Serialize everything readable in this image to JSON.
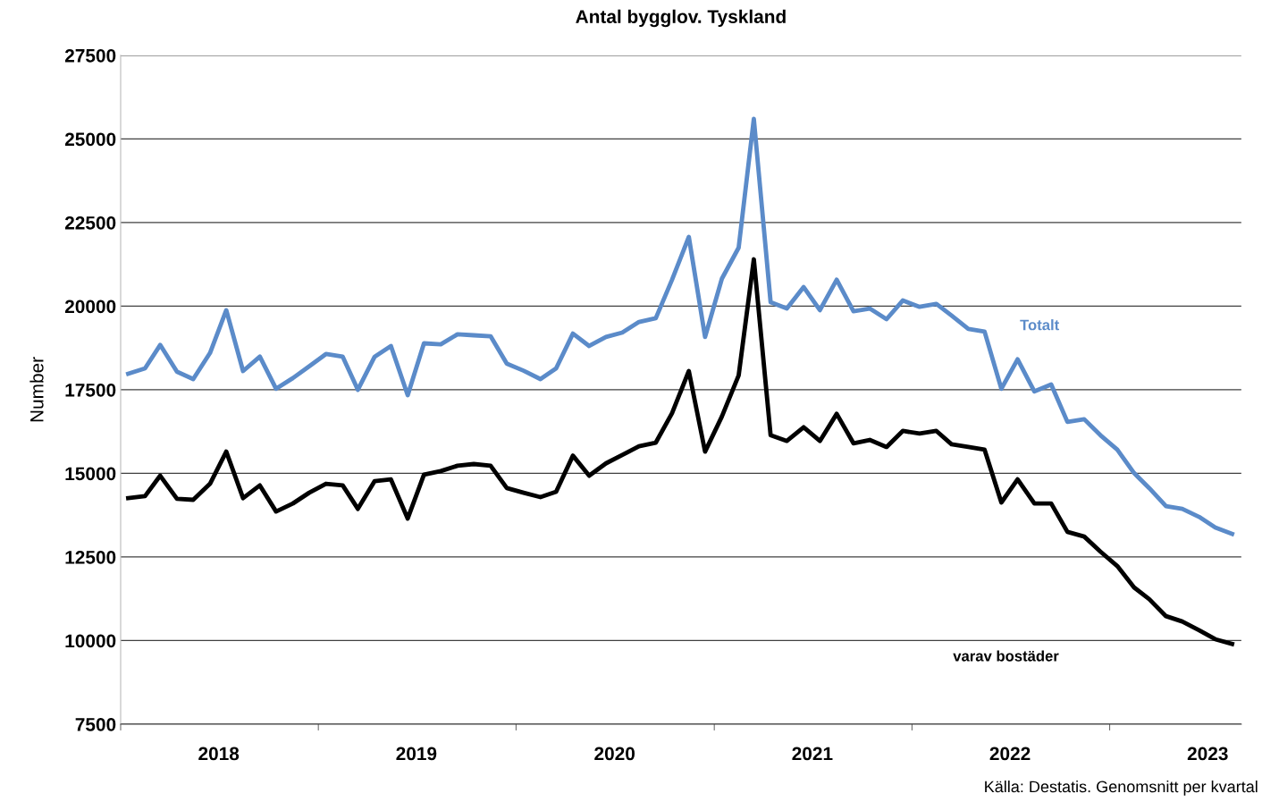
{
  "chart_data": {
    "type": "line",
    "title": "Antal bygglov. Tyskland",
    "ylabel": "Number",
    "annotations": [
      "Källa: Destatis. Genomsnitt per kvartal"
    ],
    "x": [
      "2018-01-15",
      "2018-02-15",
      "2018-03-15",
      "2018-04-15",
      "2018-05-15",
      "2018-06-15",
      "2018-07-15",
      "2018-08-15",
      "2018-09-15",
      "2018-10-15",
      "2018-11-15",
      "2018-12-15",
      "2019-01-15",
      "2019-02-15",
      "2019-03-15",
      "2019-04-15",
      "2019-05-15",
      "2019-06-15",
      "2019-07-15",
      "2019-08-15",
      "2019-09-15",
      "2019-10-15",
      "2019-11-15",
      "2019-12-15",
      "2020-01-15",
      "2020-02-15",
      "2020-03-15",
      "2020-04-15",
      "2020-05-15",
      "2020-06-15",
      "2020-07-15",
      "2020-08-15",
      "2020-09-15",
      "2020-10-15",
      "2020-11-15",
      "2020-12-15",
      "2021-01-15",
      "2021-02-15",
      "2021-03-15",
      "2021-04-15",
      "2021-05-15",
      "2021-06-15",
      "2021-07-15",
      "2021-08-15",
      "2021-09-15",
      "2021-10-15",
      "2021-11-15",
      "2021-12-15",
      "2022-01-15",
      "2022-02-15",
      "2022-03-15",
      "2022-04-15",
      "2022-05-15",
      "2022-06-15",
      "2022-07-15",
      "2022-08-15",
      "2022-09-15",
      "2022-10-15",
      "2022-11-15",
      "2022-12-15",
      "2023-01-15",
      "2023-02-15",
      "2023-03-15",
      "2023-04-15",
      "2023-05-15",
      "2023-06-15",
      "2023-07-15",
      "2023-08-15"
    ],
    "series": [
      {
        "name": "Totalt",
        "color": "#5b8bc9",
        "values": [
          17980,
          18140,
          18840,
          18040,
          17820,
          18600,
          19880,
          18060,
          18490,
          17530,
          17850,
          18200,
          18570,
          18490,
          17500,
          18490,
          18810,
          17340,
          18890,
          18860,
          19160,
          19130,
          19100,
          18280,
          18070,
          17820,
          18140,
          19180,
          18810,
          19080,
          19210,
          19530,
          19640,
          20790,
          22070,
          19080,
          20820,
          21750,
          25600,
          20120,
          19930,
          20570,
          19880,
          20790,
          19850,
          19930,
          19610,
          20170,
          19980,
          20070,
          19720,
          19320,
          19240,
          17530,
          18410,
          17450,
          17660,
          16540,
          16620,
          16140,
          15710,
          15010,
          14560,
          14020,
          13940,
          13700,
          13380,
          13190
        ]
      },
      {
        "name": "varav bostäder",
        "color": "#000000",
        "values": [
          14260,
          14320,
          14930,
          14240,
          14210,
          14690,
          15650,
          14260,
          14640,
          13860,
          14100,
          14420,
          14690,
          14640,
          13940,
          14770,
          14820,
          13650,
          14960,
          15070,
          15230,
          15280,
          15230,
          14560,
          14420,
          14290,
          14450,
          15530,
          14930,
          15300,
          15550,
          15810,
          15920,
          16800,
          18060,
          15650,
          16700,
          17930,
          21400,
          16140,
          15970,
          16380,
          15970,
          16780,
          15900,
          16000,
          15790,
          16270,
          16190,
          16270,
          15870,
          15790,
          15710,
          14130,
          14820,
          14100,
          14100,
          13250,
          13110,
          12660,
          12230,
          11590,
          11240,
          10730,
          10570,
          10310,
          10040,
          9900
        ]
      }
    ],
    "xlim": [
      "2018-01-01",
      "2023-09-01"
    ],
    "xticks": [
      {
        "value": "2018-01",
        "label": null
      },
      {
        "value": "2018-07",
        "label": "2018"
      },
      {
        "value": "2019-01",
        "label": null
      },
      {
        "value": "2019-07",
        "label": "2019"
      },
      {
        "value": "2020-01",
        "label": null
      },
      {
        "value": "2020-07",
        "label": "2020"
      },
      {
        "value": "2021-01",
        "label": null
      },
      {
        "value": "2021-07",
        "label": "2021"
      },
      {
        "value": "2022-01",
        "label": null
      },
      {
        "value": "2022-07",
        "label": "2022"
      },
      {
        "value": "2023-01",
        "label": null
      },
      {
        "value": "2023-07",
        "label": "2023"
      }
    ],
    "ylim": [
      7500,
      27500
    ],
    "yticks": [
      7500,
      10000,
      12500,
      15000,
      17500,
      20000,
      22500,
      25000,
      27500
    ],
    "grid": "y",
    "legend": false,
    "marker": "none",
    "line_style": "solid"
  }
}
